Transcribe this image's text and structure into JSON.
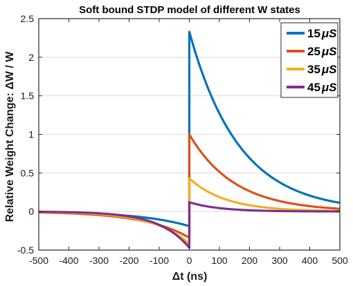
{
  "chart_data": {
    "type": "line",
    "title": "Soft bound STDP model of different W states",
    "xlabel": "Δt (ns)",
    "ylabel": "Relative Weight Change:  ΔW / W",
    "xlim": [
      -500,
      500
    ],
    "ylim": [
      -0.5,
      2.5
    ],
    "xticks": [
      -500,
      -400,
      -300,
      -200,
      -100,
      0,
      100,
      200,
      300,
      400,
      500
    ],
    "yticks": [
      -0.5,
      0,
      0.5,
      1,
      1.5,
      2,
      2.5
    ],
    "grid": "horizontal",
    "legend_position": "top-right",
    "series": [
      {
        "name": "15μS",
        "label_num": "15",
        "label_unit": "μS",
        "color": "#0072BD",
        "ltp_amplitude": 2.33,
        "ltd_amplitude": -0.19,
        "tau": 165,
        "x": [
          -500,
          -400,
          -300,
          -200,
          -100,
          0,
          0,
          100,
          200,
          300,
          400,
          500
        ],
        "y": [
          -0.01,
          -0.02,
          -0.04,
          -0.06,
          -0.11,
          -0.19,
          2.33,
          1.27,
          0.69,
          0.38,
          0.21,
          0.11
        ]
      },
      {
        "name": "25μS",
        "label_num": "25",
        "label_unit": "μS",
        "color": "#D95319",
        "ltp_amplitude": 1.0,
        "ltd_amplitude": -0.34,
        "tau": 150,
        "x": [
          -500,
          -400,
          -300,
          -200,
          -100,
          0,
          0,
          100,
          200,
          300,
          400,
          500
        ],
        "y": [
          -0.01,
          -0.03,
          -0.05,
          -0.09,
          -0.17,
          -0.34,
          1.0,
          0.51,
          0.26,
          0.14,
          0.07,
          0.04
        ]
      },
      {
        "name": "35μS",
        "label_num": "35",
        "label_unit": "μS",
        "color": "#EDB120",
        "ltp_amplitude": 0.43,
        "ltd_amplitude": -0.42,
        "tau": 120,
        "x": [
          -500,
          -400,
          -300,
          -200,
          -100,
          0,
          0,
          100,
          200,
          300,
          400,
          500
        ],
        "y": [
          -0.01,
          -0.02,
          -0.04,
          -0.08,
          -0.17,
          -0.42,
          0.43,
          0.19,
          0.08,
          0.04,
          0.02,
          0.01
        ]
      },
      {
        "name": "45μS",
        "label_num": "45",
        "label_unit": "μS",
        "color": "#7E2F8E",
        "ltp_amplitude": 0.12,
        "ltd_amplitude": -0.47,
        "tau": 100,
        "x": [
          -500,
          -400,
          -300,
          -200,
          -100,
          0,
          0,
          100,
          200,
          300,
          400,
          500
        ],
        "y": [
          -0.01,
          -0.02,
          -0.04,
          -0.08,
          -0.18,
          -0.47,
          0.12,
          0.04,
          0.02,
          0.01,
          0.0,
          0.0
        ]
      }
    ]
  }
}
